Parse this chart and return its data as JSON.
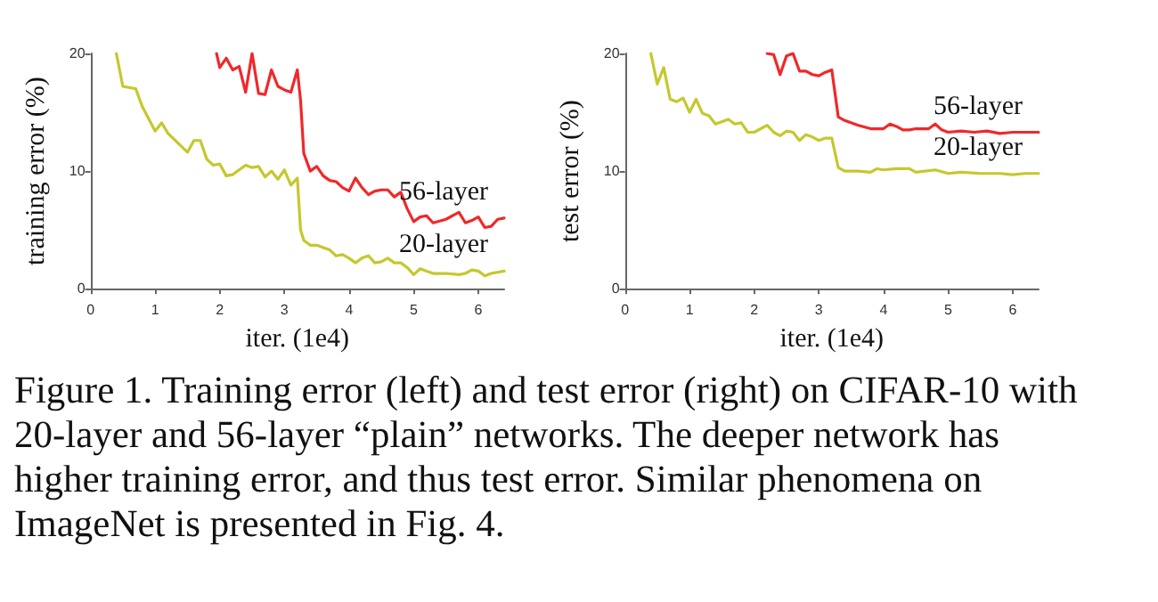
{
  "chart_data": [
    {
      "type": "line",
      "xlabel": "iter. (1e4)",
      "ylabel": "training error (%)",
      "xlim": [
        0,
        6.4
      ],
      "ylim": [
        0,
        20
      ],
      "xticks": [
        0,
        1,
        2,
        3,
        4,
        5,
        6
      ],
      "yticks": [
        0,
        10,
        20
      ],
      "marker": "none",
      "line_style": "solid",
      "series": [
        {
          "name": "56-layer",
          "color": "#f0282a",
          "x": [
            1.95,
            2.0,
            2.1,
            2.2,
            2.3,
            2.4,
            2.5,
            2.6,
            2.7,
            2.8,
            2.9,
            3.0,
            3.1,
            3.2,
            3.25,
            3.3,
            3.4,
            3.5,
            3.6,
            3.7,
            3.8,
            3.9,
            4.0,
            4.1,
            4.2,
            4.3,
            4.4,
            4.5,
            4.6,
            4.7,
            4.8,
            4.9,
            5.0,
            5.1,
            5.2,
            5.3,
            5.5,
            5.7,
            5.8,
            5.9,
            6.0,
            6.1,
            6.2,
            6.3,
            6.4
          ],
          "values": [
            20,
            18.8,
            19.6,
            18.6,
            18.9,
            16.7,
            20,
            16.6,
            16.5,
            18.6,
            17.2,
            16.9,
            16.7,
            18.6,
            16,
            11.5,
            10,
            10.4,
            9.6,
            9.2,
            9.1,
            8.6,
            8.3,
            9.4,
            8.6,
            8,
            8.3,
            8.4,
            8.4,
            7.8,
            8.2,
            6.8,
            5.7,
            6.1,
            6.2,
            5.6,
            5.9,
            6.5,
            5.6,
            5.8,
            6.1,
            5.2,
            5.3,
            5.9,
            6
          ]
        },
        {
          "name": "20-layer",
          "color": "#c5c82c",
          "x": [
            0.4,
            0.5,
            0.7,
            0.8,
            1.0,
            1.1,
            1.2,
            1.5,
            1.6,
            1.7,
            1.8,
            1.9,
            2.0,
            2.1,
            2.2,
            2.4,
            2.5,
            2.6,
            2.7,
            2.8,
            2.9,
            3.0,
            3.1,
            3.2,
            3.25,
            3.3,
            3.4,
            3.5,
            3.6,
            3.7,
            3.8,
            3.9,
            4.0,
            4.1,
            4.2,
            4.3,
            4.4,
            4.5,
            4.6,
            4.7,
            4.8,
            4.9,
            5.0,
            5.1,
            5.2,
            5.3,
            5.5,
            5.7,
            5.8,
            5.9,
            6.0,
            6.1,
            6.2,
            6.4
          ],
          "values": [
            20,
            17.2,
            17,
            15.5,
            13.4,
            14.1,
            13.2,
            11.6,
            12.6,
            12.6,
            11,
            10.5,
            10.6,
            9.6,
            9.7,
            10.5,
            10.3,
            10.4,
            9.5,
            10,
            9.3,
            10.1,
            8.8,
            9.4,
            5,
            4.1,
            3.7,
            3.7,
            3.5,
            3.3,
            2.8,
            2.9,
            2.6,
            2.2,
            2.6,
            2.8,
            2.2,
            2.3,
            2.6,
            2.2,
            2.2,
            1.8,
            1.2,
            1.7,
            1.5,
            1.3,
            1.3,
            1.2,
            1.3,
            1.6,
            1.5,
            1.1,
            1.3,
            1.5
          ]
        }
      ],
      "annotations": [
        "Figure 1. Training error (left) and test error (right) on CIFAR-10 with 20-layer and 56-layer “plain” networks. The deeper network has higher training error, and thus test error. Similar phenomena on ImageNet is presented in Fig. 4."
      ]
    },
    {
      "type": "line",
      "xlabel": "iter. (1e4)",
      "ylabel": "test error (%)",
      "xlim": [
        0,
        6.4
      ],
      "ylim": [
        0,
        20
      ],
      "xticks": [
        0,
        1,
        2,
        3,
        4,
        5,
        6
      ],
      "yticks": [
        0,
        10,
        20
      ],
      "marker": "none",
      "line_style": "solid",
      "series": [
        {
          "name": "56-layer",
          "color": "#f0282a",
          "x": [
            2.2,
            2.3,
            2.4,
            2.5,
            2.6,
            2.7,
            2.8,
            2.9,
            3.0,
            3.1,
            3.2,
            3.3,
            3.4,
            3.6,
            3.8,
            3.9,
            4.0,
            4.1,
            4.2,
            4.3,
            4.4,
            4.5,
            4.7,
            4.8,
            4.9,
            5.0,
            5.2,
            5.4,
            5.6,
            5.8,
            6.0,
            6.2,
            6.4
          ],
          "values": [
            20,
            19.9,
            18.2,
            19.8,
            20,
            18.5,
            18.5,
            18.2,
            18.1,
            18.4,
            18.6,
            14.6,
            14.3,
            13.9,
            13.6,
            13.6,
            13.6,
            14,
            13.8,
            13.5,
            13.5,
            13.6,
            13.6,
            14,
            13.5,
            13.3,
            13.4,
            13.3,
            13.4,
            13.2,
            13.3,
            13.3,
            13.3
          ]
        },
        {
          "name": "20-layer",
          "color": "#c5c82c",
          "x": [
            0.4,
            0.5,
            0.6,
            0.7,
            0.8,
            0.9,
            1.0,
            1.1,
            1.2,
            1.3,
            1.4,
            1.6,
            1.7,
            1.8,
            1.9,
            2.0,
            2.2,
            2.3,
            2.4,
            2.5,
            2.6,
            2.7,
            2.8,
            2.9,
            3.0,
            3.1,
            3.2,
            3.3,
            3.4,
            3.6,
            3.8,
            3.9,
            4.0,
            4.2,
            4.4,
            4.5,
            4.8,
            5.0,
            5.2,
            5.5,
            5.8,
            6.0,
            6.2,
            6.4
          ],
          "values": [
            20,
            17.4,
            18.8,
            16.1,
            15.9,
            16.2,
            15,
            16.1,
            14.9,
            14.7,
            14,
            14.4,
            14,
            14.1,
            13.3,
            13.3,
            13.9,
            13.3,
            13,
            13.4,
            13.3,
            12.6,
            13.1,
            12.9,
            12.6,
            12.8,
            12.8,
            10.3,
            10,
            10,
            9.9,
            10.2,
            10.1,
            10.2,
            10.2,
            9.9,
            10.1,
            9.8,
            9.9,
            9.8,
            9.8,
            9.7,
            9.8,
            9.8
          ]
        }
      ]
    }
  ]
}
